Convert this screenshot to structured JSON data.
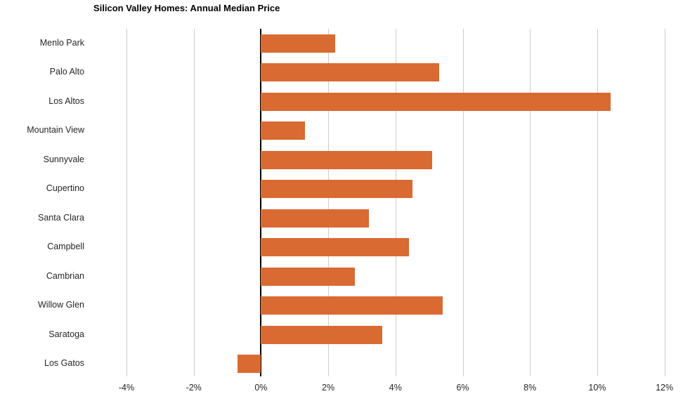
{
  "chart_data": {
    "type": "bar",
    "orientation": "horizontal",
    "title": "Silicon Valley Homes: Annual Median Price",
    "categories": [
      "Menlo Park",
      "Palo Alto",
      "Los Altos",
      "Mountain View",
      "Sunnyvale",
      "Cupertino",
      "Santa Clara",
      "Campbell",
      "Cambrian",
      "Willow Glen",
      "Saratoga",
      "Los Gatos"
    ],
    "values": [
      2.2,
      5.3,
      10.4,
      1.3,
      5.1,
      4.5,
      3.2,
      4.4,
      2.8,
      5.4,
      3.6,
      -0.7
    ],
    "value_unit": "%",
    "xlabel": "",
    "ylabel": "",
    "x_axis": {
      "min": -4,
      "max": 12,
      "tick_step": 2,
      "tick_labels": [
        "-4%",
        "-2%",
        "0%",
        "2%",
        "4%",
        "6%",
        "8%",
        "10%",
        "12%"
      ]
    },
    "grid": "vertical-gridlines-on",
    "legend": "none",
    "colors": {
      "bar": "#D96A32",
      "gridline": "#CCCCCC",
      "zero_line": "#000000",
      "text": "#262626",
      "title_text": "#000000",
      "background": "#FFFFFF"
    }
  }
}
